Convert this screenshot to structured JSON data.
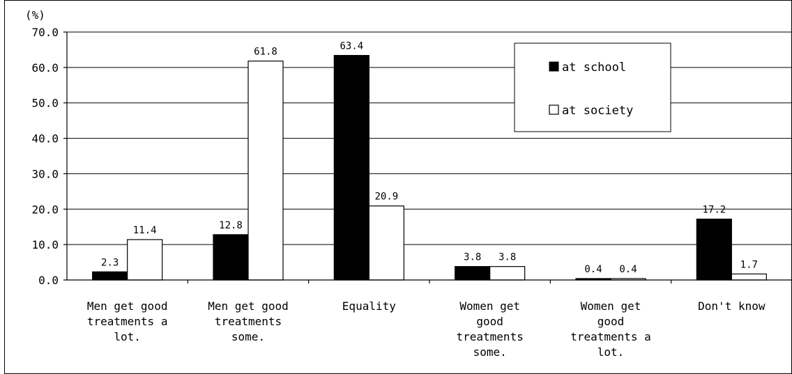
{
  "chart_data": {
    "type": "bar",
    "unit_label": "(%)",
    "ylim": [
      0,
      70
    ],
    "yticks": [
      "0.0",
      "10.0",
      "20.0",
      "30.0",
      "40.0",
      "50.0",
      "60.0",
      "70.0"
    ],
    "grid": true,
    "legend_position": "top-right",
    "categories": [
      [
        "Men get good",
        "treatments a",
        "lot."
      ],
      [
        "Men get good",
        "treatments",
        "some."
      ],
      [
        "Equality"
      ],
      [
        "Women get",
        "good",
        "treatments",
        "some."
      ],
      [
        "Women get",
        "good",
        "treatments a",
        "lot."
      ],
      [
        "Don't know"
      ]
    ],
    "series": [
      {
        "name": "at school",
        "color": "#000000",
        "values": [
          2.3,
          12.8,
          63.4,
          3.8,
          0.4,
          17.2
        ],
        "labels": [
          "2.3",
          "12.8",
          "63.4",
          "3.8",
          "0.4",
          "17.2"
        ]
      },
      {
        "name": "at society",
        "color": "#ffffff",
        "values": [
          11.4,
          61.8,
          20.9,
          3.8,
          0.4,
          1.7
        ],
        "labels": [
          "11.4",
          "61.8",
          "20.9",
          "3.8",
          "0.4",
          "1.7"
        ]
      }
    ]
  }
}
